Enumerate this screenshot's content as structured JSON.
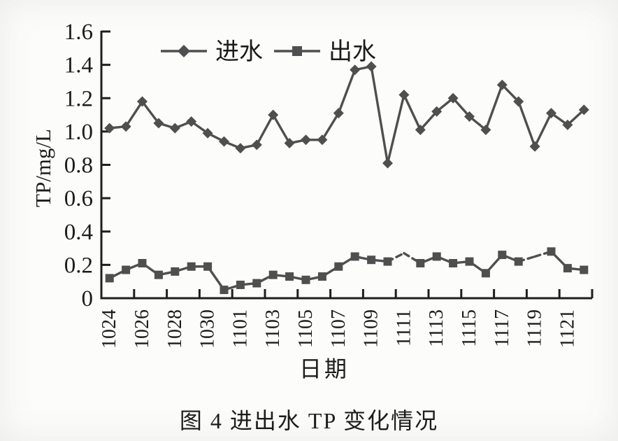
{
  "figure": {
    "caption": "图 4  进出水 TP 变化情况"
  },
  "colors": {
    "axis": "#1f1f1f",
    "text": "#1c1c1c",
    "series": "#4f4f4f",
    "background": "#fcfcfa"
  },
  "chart_data": {
    "type": "line",
    "title": "",
    "xlabel": "日期",
    "ylabel": "TP/mg/L",
    "ylim": [
      0,
      1.6
    ],
    "ytick_step": 0.2,
    "ytick_labels": [
      "0",
      "0.2",
      "0.4",
      "0.6",
      "0.8",
      "1.0",
      "1.2",
      "1.4",
      "1.6"
    ],
    "grid": false,
    "legend_position": "top-center",
    "categories": [
      "1024",
      "1025",
      "1026",
      "1027",
      "1028",
      "1029",
      "1030",
      "1031",
      "1101",
      "1102",
      "1103",
      "1104",
      "1105",
      "1106",
      "1107",
      "1108",
      "1109",
      "1110",
      "1111",
      "1112",
      "1113",
      "1114",
      "1115",
      "1116",
      "1117",
      "1118",
      "1119",
      "1120",
      "1121",
      "1122"
    ],
    "xtick_labels": [
      "1024",
      "1026",
      "1028",
      "1030",
      "1101",
      "1103",
      "1105",
      "1107",
      "1109",
      "1111",
      "1113",
      "1115",
      "1117",
      "1119",
      "1121"
    ],
    "series": [
      {
        "name": "进水",
        "marker": "diamond",
        "color": "#4f4f4f",
        "values": [
          1.02,
          1.03,
          1.18,
          1.05,
          1.02,
          1.06,
          0.99,
          0.94,
          0.9,
          0.92,
          1.1,
          0.93,
          0.95,
          0.95,
          1.11,
          1.37,
          1.39,
          0.81,
          1.22,
          1.01,
          1.12,
          1.2,
          1.09,
          1.01,
          1.28,
          1.18,
          0.91,
          1.11,
          1.04,
          1.13
        ],
        "no_marker_indices": []
      },
      {
        "name": "出水",
        "marker": "square",
        "color": "#4f4f4f",
        "values": [
          0.12,
          0.17,
          0.21,
          0.14,
          0.16,
          0.19,
          0.19,
          0.05,
          0.08,
          0.09,
          0.14,
          0.13,
          0.11,
          0.13,
          0.19,
          0.25,
          0.23,
          0.22,
          0.27,
          0.21,
          0.25,
          0.21,
          0.22,
          0.15,
          0.26,
          0.22,
          0.25,
          0.28,
          0.18,
          0.17
        ],
        "no_marker_indices": [
          18,
          26
        ]
      }
    ]
  }
}
